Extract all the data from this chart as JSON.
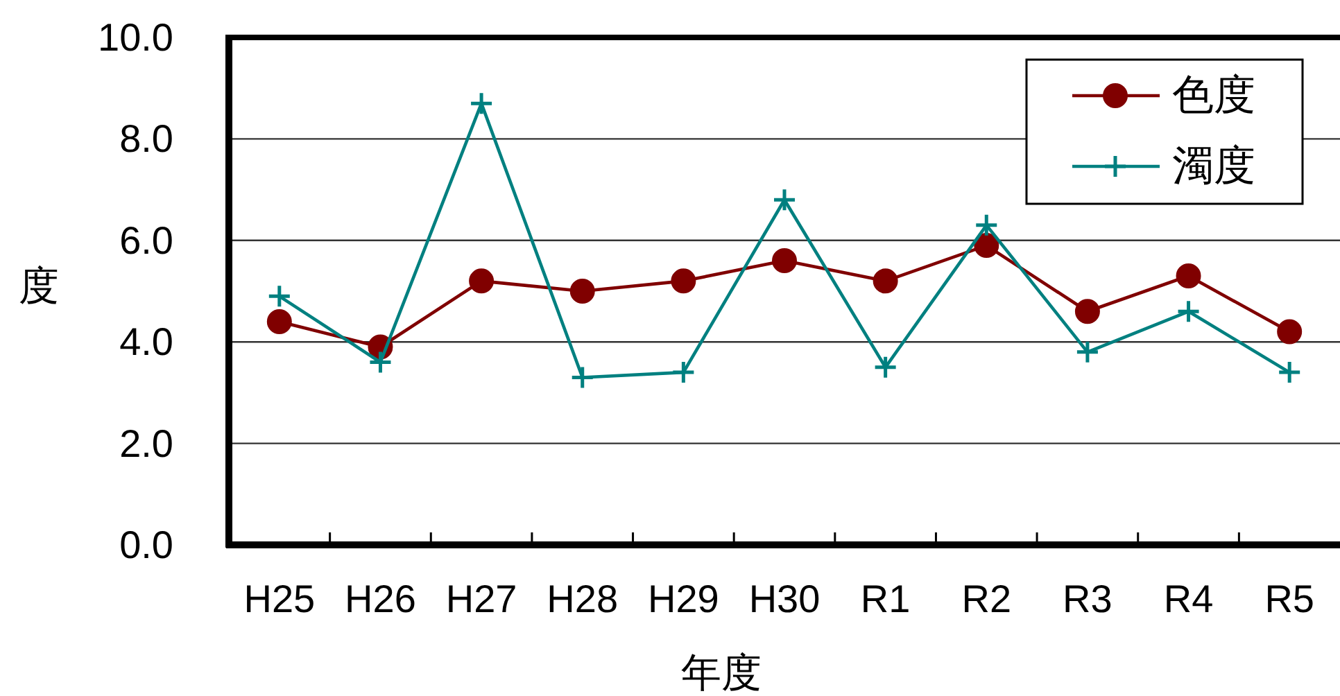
{
  "chart_data": {
    "type": "line",
    "xlabel": "年度",
    "ylabel": "度",
    "categories": [
      "H25",
      "H26",
      "H27",
      "H28",
      "H29",
      "H30",
      "R1",
      "R2",
      "R3",
      "R4",
      "R5"
    ],
    "series": [
      {
        "name": "色度",
        "color": "#800000",
        "marker": "circle",
        "values": [
          4.4,
          3.9,
          5.2,
          5.0,
          5.2,
          5.6,
          5.2,
          5.9,
          4.6,
          5.3,
          4.2
        ]
      },
      {
        "name": "濁度",
        "color": "#008080",
        "marker": "cross",
        "values": [
          4.9,
          3.6,
          8.7,
          3.3,
          3.4,
          6.8,
          3.5,
          6.3,
          3.8,
          4.6,
          3.4
        ]
      }
    ],
    "ylim": [
      0,
      10
    ],
    "yticks": [
      {
        "value": 0,
        "label": "0.0"
      },
      {
        "value": 2,
        "label": "2.0"
      },
      {
        "value": 4,
        "label": "4.0"
      },
      {
        "value": 6,
        "label": "6.0"
      },
      {
        "value": 8,
        "label": "8.0"
      },
      {
        "value": 10,
        "label": "10.0"
      }
    ],
    "grid": "y",
    "legend": "top right"
  }
}
